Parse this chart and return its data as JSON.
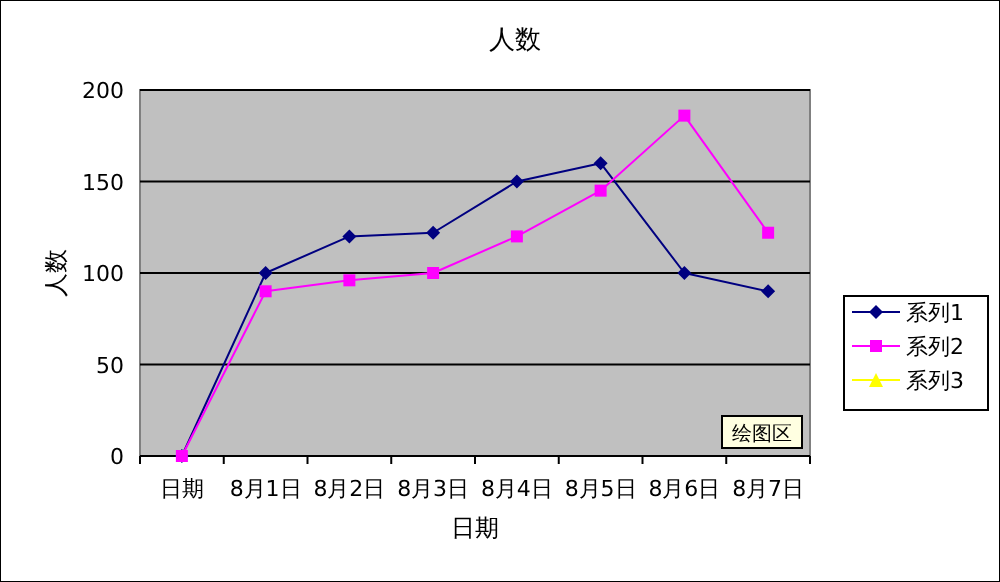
{
  "chart_data": {
    "type": "line",
    "title": "人数",
    "xlabel": "日期",
    "ylabel": "人数",
    "categories": [
      "日期",
      "8月1日",
      "8月2日",
      "8月3日",
      "8月4日",
      "8月5日",
      "8月6日",
      "8月7日"
    ],
    "series": [
      {
        "name": "系列1",
        "color": "#000080",
        "marker": "diamond",
        "values": [
          0,
          100,
          120,
          122,
          150,
          160,
          100,
          90
        ]
      },
      {
        "name": "系列2",
        "color": "#ff00ff",
        "marker": "square",
        "values": [
          0,
          90,
          96,
          100,
          120,
          145,
          186,
          122
        ]
      },
      {
        "name": "系列3",
        "color": "#ffff00",
        "marker": "triangle",
        "values": [
          null,
          null,
          null,
          null,
          null,
          null,
          null,
          null
        ]
      }
    ],
    "ylim": [
      0,
      200
    ],
    "yticks": [
      0,
      50,
      100,
      150,
      200
    ],
    "grid": "y",
    "legend": "right",
    "annotations": [
      "绘图区"
    ]
  }
}
